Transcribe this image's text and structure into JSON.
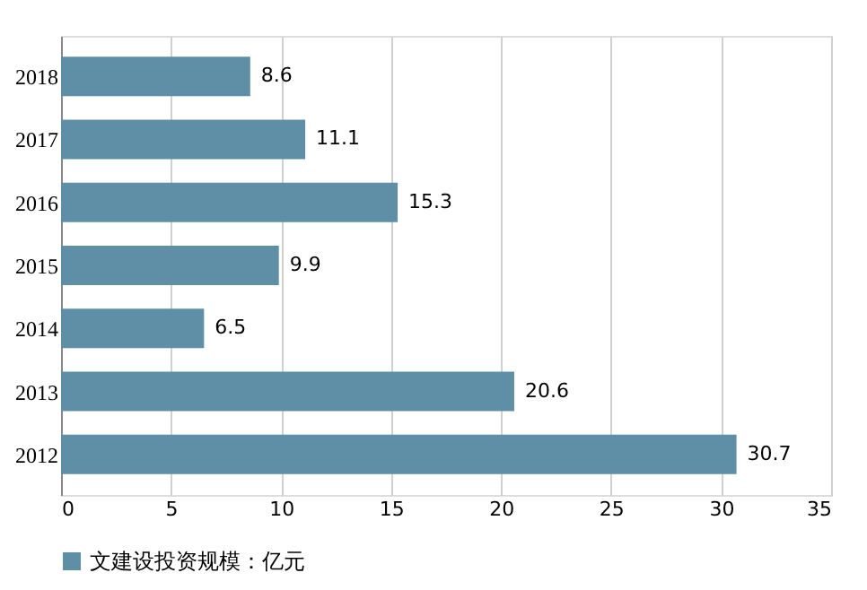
{
  "chart_data": {
    "type": "bar",
    "orientation": "horizontal",
    "categories": [
      "2018",
      "2017",
      "2016",
      "2015",
      "2014",
      "2013",
      "2012"
    ],
    "series": [
      {
        "name": "文建设投资规模：亿元",
        "color": "#5f8fa7",
        "values": [
          8.6,
          11.1,
          15.3,
          9.9,
          6.5,
          20.6,
          30.7
        ]
      }
    ],
    "xlim": [
      0,
      35
    ],
    "xticks": [
      0,
      5,
      10,
      15,
      20,
      25,
      30,
      35
    ],
    "grid": "x",
    "data_labels": true,
    "legend": "bottom"
  }
}
